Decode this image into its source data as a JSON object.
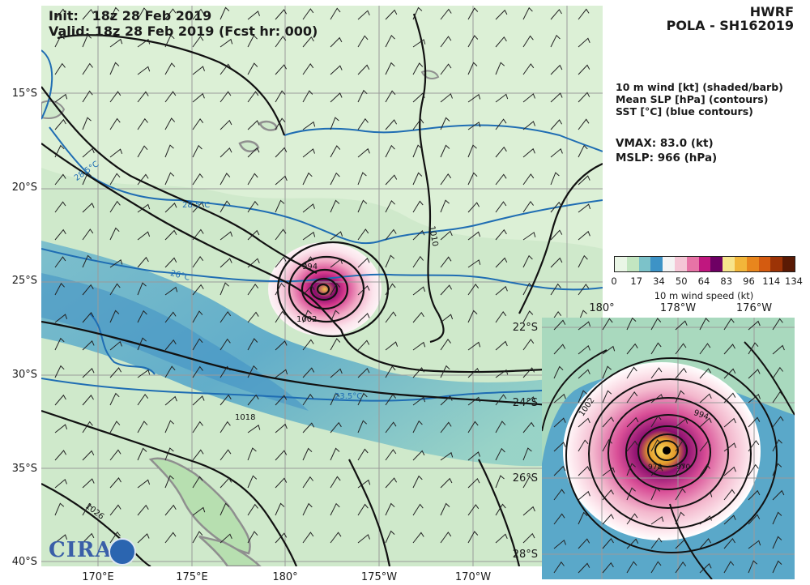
{
  "header": {
    "init": "Init:   18z 28 Feb 2019",
    "valid": "Valid: 18z 28 Feb 2019 (Fcst hr: 000)",
    "model": "HWRF",
    "storm": "POLA - SH162019"
  },
  "legend_text": {
    "line1": "10 m wind [kt] (shaded/barb)",
    "line2": "Mean SLP [hPa] (contours)",
    "line3": "SST [°C] (blue contours)"
  },
  "stats": {
    "vmax": "VMAX:  83.0 (kt)",
    "mslp": "MSLP:  966 (hPa)"
  },
  "colorbar": {
    "ticks": [
      "0",
      "17",
      "34",
      "50",
      "64",
      "83",
      "96",
      "114",
      "134"
    ],
    "label": "10 m wind speed (kt)",
    "colors": [
      "#eaf6e6",
      "#c3e6c1",
      "#7cc2c9",
      "#3d93c6",
      "#f4f4f4",
      "#f5c6d6",
      "#e773a6",
      "#c0177f",
      "#6e0064",
      "#f7e48c",
      "#f2b63a",
      "#e8861d",
      "#d45b10",
      "#9c3306",
      "#5a1a04"
    ]
  },
  "main_axes": {
    "lat_labels": [
      "15°S",
      "20°S",
      "25°S",
      "30°S",
      "35°S",
      "40°S"
    ],
    "lon_labels": [
      "170°E",
      "175°E",
      "180°",
      "175°W",
      "170°W"
    ]
  },
  "inset_axes": {
    "lon_labels": [
      "180°",
      "178°W",
      "176°W"
    ],
    "lat_labels": [
      "22°S",
      "24°S",
      "26°S",
      "28°S"
    ]
  },
  "contour_labels": {
    "main": [
      "28.5°C",
      "28.5°C",
      "26°C",
      "23.5°C",
      "1010",
      "994",
      "1002",
      "1018",
      "1026"
    ],
    "inset": [
      "1002",
      "994",
      "978",
      "970"
    ]
  },
  "logo": {
    "text": "CIRA"
  }
}
